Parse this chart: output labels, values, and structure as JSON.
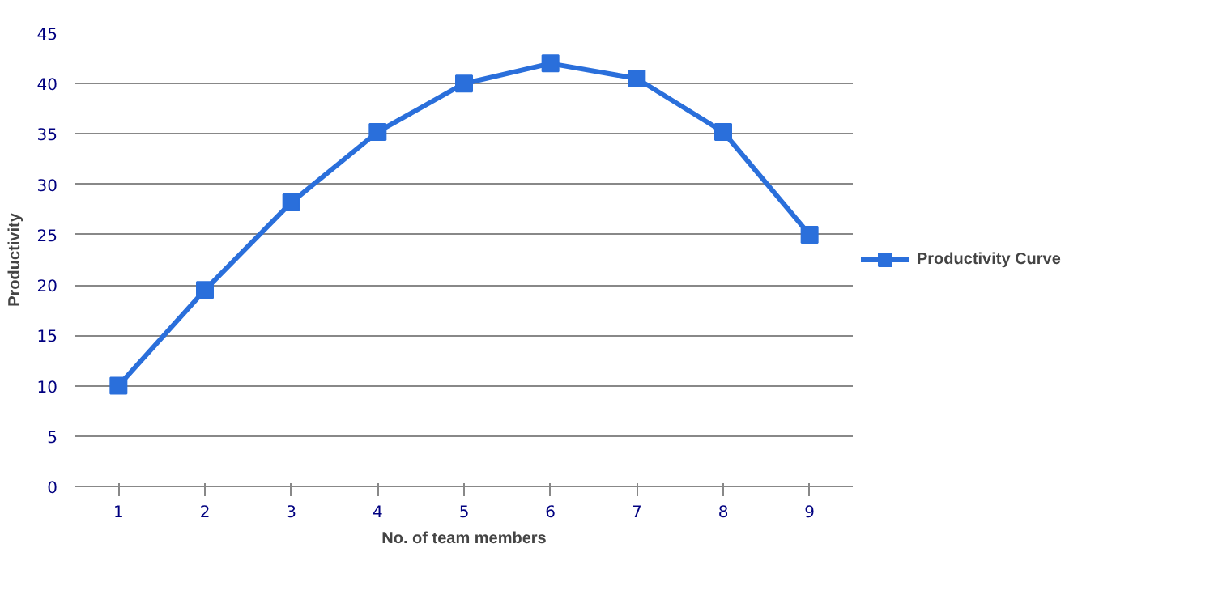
{
  "chart_data": {
    "type": "line",
    "xlabel": "No. of team members",
    "ylabel": "Productivity",
    "categories": [
      "1",
      "2",
      "3",
      "4",
      "5",
      "6",
      "7",
      "8",
      "9"
    ],
    "series": [
      {
        "name": "Productivity Curve",
        "color": "#2a6fdb",
        "values": [
          10,
          19.5,
          28.2,
          35.2,
          40,
          42,
          40.5,
          35.2,
          25
        ]
      }
    ],
    "ylim": [
      0,
      45
    ],
    "yticks": [
      0,
      5,
      10,
      15,
      20,
      25,
      30,
      35,
      40,
      45
    ],
    "grid": "y",
    "legend": "right",
    "marker": "square",
    "line_style": "solid"
  }
}
